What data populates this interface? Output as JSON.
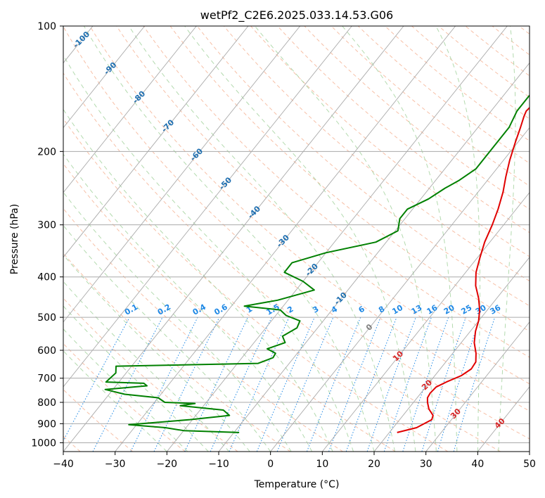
{
  "chart_data": {
    "type": "line",
    "chart_subtype": "skew-T log-P diagram",
    "title": "wetPf2_C2E6.2025.033.14.53.G06",
    "xlabel": "Temperature (°C)",
    "ylabel": "Pressure (hPa)",
    "xlim": [
      -40,
      50
    ],
    "ylim": [
      1050,
      100
    ],
    "y_scale": "log",
    "x_ticks": [
      "−40",
      "−30",
      "−20",
      "−10",
      "0",
      "10",
      "20",
      "30",
      "40",
      "50"
    ],
    "y_ticks": [
      "100",
      "200",
      "300",
      "400",
      "500",
      "600",
      "700",
      "800",
      "900",
      "1000"
    ],
    "grid": true,
    "colors": {
      "temperature": "#e00000",
      "dewpoint": "#008000",
      "isotherm_grid": "#aaaaaa",
      "dry_adiabat": "#f4a582",
      "moist_adiabat": "#a6d4a0",
      "mixing_ratio": "#1e88e5",
      "isotherm_label": "#1f6fb0",
      "warm_label": "#d62728",
      "zero_label": "#808080"
    },
    "isotherm_labels": [
      "-100",
      "-90",
      "-80",
      "-70",
      "-60",
      "-50",
      "-40",
      "-30",
      "-20",
      "-10",
      "0",
      "10",
      "20",
      "30",
      "40"
    ],
    "mixing_ratio_labels": [
      "0.1",
      "0.2",
      "0.4",
      "0.6",
      "1",
      "1.5",
      "2",
      "3",
      "4",
      "6",
      "8",
      "10",
      "13",
      "16",
      "20",
      "25",
      "30",
      "36"
    ],
    "series": [
      {
        "name": "",
        "values_pT": [
          [
            945,
            21.5
          ],
          [
            920,
            24.5
          ],
          [
            880,
            26.2
          ],
          [
            860,
            25.8
          ],
          [
            830,
            24.0
          ],
          [
            800,
            22.7
          ],
          [
            780,
            22.0
          ],
          [
            760,
            21.8
          ],
          [
            735,
            22.0
          ],
          [
            715,
            23.2
          ],
          [
            690,
            25.1
          ],
          [
            665,
            26.0
          ],
          [
            640,
            25.8
          ],
          [
            610,
            24.5
          ],
          [
            575,
            22.5
          ],
          [
            540,
            21.0
          ],
          [
            510,
            20.0
          ],
          [
            480,
            18.5
          ],
          [
            450,
            16.5
          ],
          [
            420,
            14.0
          ],
          [
            390,
            12.0
          ],
          [
            360,
            10.5
          ],
          [
            330,
            9.0
          ],
          [
            300,
            7.8
          ],
          [
            275,
            6.5
          ],
          [
            250,
            4.8
          ],
          [
            230,
            3.0
          ],
          [
            210,
            1.2
          ],
          [
            190,
            -0.5
          ],
          [
            175,
            -1.8
          ],
          [
            165,
            -2.8
          ],
          [
            160,
            -3.2
          ],
          [
            155,
            -3.0
          ],
          [
            148,
            -2.0
          ],
          [
            140,
            0.0
          ],
          [
            130,
            3.5
          ],
          [
            120,
            6.0
          ],
          [
            110,
            8.0
          ],
          [
            100,
            9.5
          ]
        ]
      },
      {
        "name": "",
        "values_pT": [
          [
            945,
            -9.0
          ],
          [
            935,
            -20.0
          ],
          [
            920,
            -24.0
          ],
          [
            905,
            -31.5
          ],
          [
            895,
            -27.0
          ],
          [
            880,
            -20.5
          ],
          [
            860,
            -13.5
          ],
          [
            835,
            -15.5
          ],
          [
            815,
            -24.5
          ],
          [
            805,
            -22.0
          ],
          [
            800,
            -28.0
          ],
          [
            780,
            -30.0
          ],
          [
            765,
            -37.0
          ],
          [
            745,
            -41.5
          ],
          [
            730,
            -34.0
          ],
          [
            720,
            -35.0
          ],
          [
            715,
            -42.5
          ],
          [
            680,
            -42.0
          ],
          [
            655,
            -43.0
          ],
          [
            645,
            -16.0
          ],
          [
            625,
            -14.0
          ],
          [
            610,
            -14.2
          ],
          [
            595,
            -16.5
          ],
          [
            575,
            -14.0
          ],
          [
            555,
            -15.5
          ],
          [
            530,
            -14.0
          ],
          [
            510,
            -14.5
          ],
          [
            495,
            -18.0
          ],
          [
            480,
            -20.0
          ],
          [
            470,
            -27.5
          ],
          [
            455,
            -22.0
          ],
          [
            430,
            -16.5
          ],
          [
            410,
            -20.0
          ],
          [
            390,
            -25.0
          ],
          [
            370,
            -25.0
          ],
          [
            350,
            -20.0
          ],
          [
            330,
            -12.0
          ],
          [
            310,
            -9.5
          ],
          [
            290,
            -11.0
          ],
          [
            275,
            -11.0
          ],
          [
            260,
            -8.5
          ],
          [
            245,
            -7.0
          ],
          [
            235,
            -5.5
          ],
          [
            220,
            -4.0
          ],
          [
            205,
            -4.0
          ],
          [
            190,
            -4.0
          ],
          [
            175,
            -4.0
          ],
          [
            160,
            -5.0
          ],
          [
            150,
            -5.0
          ],
          [
            140,
            -5.0
          ],
          [
            130,
            -5.0
          ],
          [
            120,
            -3.0
          ],
          [
            115,
            -1.0
          ],
          [
            110,
            0.0
          ],
          [
            100,
            0.5
          ]
        ]
      }
    ]
  }
}
